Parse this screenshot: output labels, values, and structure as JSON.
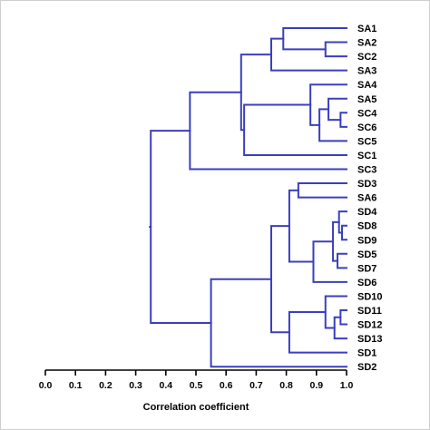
{
  "diagram": {
    "type": "dendrogram",
    "xlabel": "Correlation coefficient",
    "xlim": [
      0.0,
      1.0
    ],
    "ticks": [
      "0.0",
      "0.1",
      "0.2",
      "0.3",
      "0.4",
      "0.5",
      "0.6",
      "0.7",
      "0.8",
      "0.9",
      "1.0"
    ],
    "line_color": "#3b3fbf",
    "leaves": [
      "SA1",
      "SA2",
      "SC2",
      "SA3",
      "SA4",
      "SA5",
      "SC4",
      "SC6",
      "SC5",
      "SC1",
      "SC3",
      "SD3",
      "SA6",
      "SD4",
      "SD8",
      "SD9",
      "SD5",
      "SD7",
      "SD6",
      "SD10",
      "SD11",
      "SD12",
      "SD13",
      "SD1",
      "SD2"
    ],
    "merges": [
      {
        "a": "SA2",
        "b": "SC2",
        "height": 0.93
      },
      {
        "a": "SA1",
        "b": "m1",
        "height": 0.79
      },
      {
        "a": "m2",
        "b": "SA3",
        "height": 0.75
      },
      {
        "a": "SC4",
        "b": "SC6",
        "height": 0.98
      },
      {
        "a": "SA5",
        "b": "m4",
        "height": 0.94
      },
      {
        "a": "m5",
        "b": "SC5",
        "height": 0.91
      },
      {
        "a": "SA4",
        "b": "m6",
        "height": 0.88
      },
      {
        "a": "m7",
        "b": "SC1",
        "height": 0.66
      },
      {
        "a": "m3",
        "b": "m8",
        "height": 0.65
      },
      {
        "a": "m9",
        "b": "SC3",
        "height": 0.48
      },
      {
        "a": "SD3",
        "b": "SA6",
        "height": 0.84
      },
      {
        "a": "SD8",
        "b": "SD9",
        "height": 0.985
      },
      {
        "a": "SD4",
        "b": "m12",
        "height": 0.975
      },
      {
        "a": "SD5",
        "b": "SD7",
        "height": 0.97
      },
      {
        "a": "m13",
        "b": "m14",
        "height": 0.955
      },
      {
        "a": "m15",
        "b": "SD6",
        "height": 0.89
      },
      {
        "a": "m11",
        "b": "m16",
        "height": 0.81
      },
      {
        "a": "SD11",
        "b": "SD12",
        "height": 0.98
      },
      {
        "a": "m18",
        "b": "SD13",
        "height": 0.96
      },
      {
        "a": "SD10",
        "b": "m19",
        "height": 0.93
      },
      {
        "a": "m20",
        "b": "SD1",
        "height": 0.81
      },
      {
        "a": "m17",
        "b": "m21",
        "height": 0.75
      },
      {
        "a": "m22",
        "b": "SD2",
        "height": 0.55
      },
      {
        "a": "m10",
        "b": "m23",
        "height": 0.35
      }
    ]
  }
}
